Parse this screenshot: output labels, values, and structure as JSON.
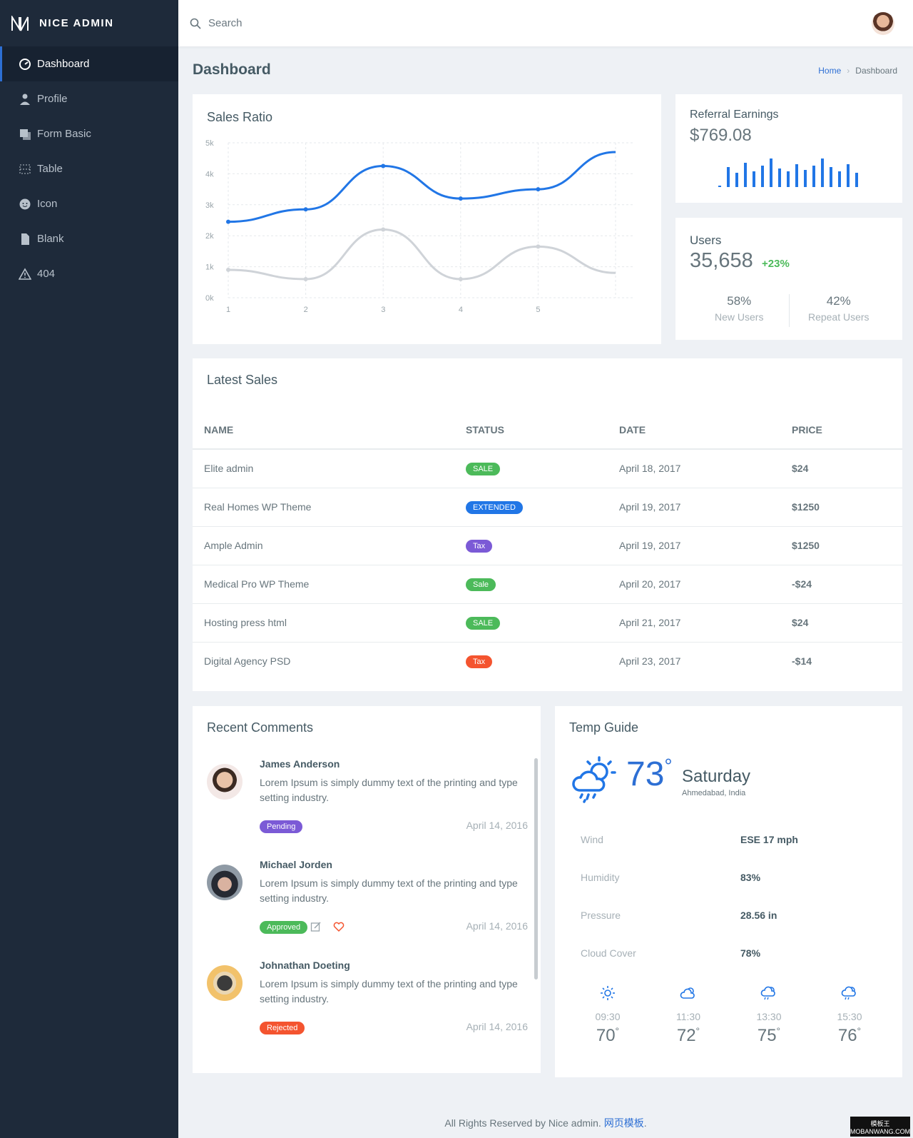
{
  "brand": {
    "name": "NICE ADMIN"
  },
  "sidebar": {
    "items": [
      {
        "label": "Dashboard",
        "icon": "dashboard-icon",
        "active": true
      },
      {
        "label": "Profile",
        "icon": "user-icon"
      },
      {
        "label": "Form Basic",
        "icon": "form-icon"
      },
      {
        "label": "Table",
        "icon": "table-icon"
      },
      {
        "label": "Icon",
        "icon": "smiley-icon"
      },
      {
        "label": "Blank",
        "icon": "file-icon"
      },
      {
        "label": "404",
        "icon": "alert-icon"
      }
    ]
  },
  "topbar": {
    "search_placeholder": "Search"
  },
  "page": {
    "title": "Dashboard",
    "breadcrumb": {
      "home": "Home",
      "current": "Dashboard"
    }
  },
  "sales_ratio": {
    "title": "Sales Ratio"
  },
  "chart_data": {
    "type": "line",
    "title": "Sales Ratio",
    "x": [
      1,
      2,
      3,
      4,
      5,
      6
    ],
    "x_tick_labels": [
      "1",
      "2",
      "3",
      "4",
      "5"
    ],
    "y_tick_labels": [
      "5k",
      "4k",
      "3k",
      "2k",
      "1k",
      "0k"
    ],
    "ylim": [
      0,
      5000
    ],
    "grid": true,
    "series": [
      {
        "values": [
          2450,
          2850,
          4250,
          3200,
          3500,
          4700
        ],
        "color": "#2176e6"
      },
      {
        "values": [
          900,
          600,
          2200,
          600,
          1650,
          800
        ],
        "color": "#cfd3d8"
      }
    ]
  },
  "referral": {
    "label": "Referral Earnings",
    "value": "$769.08",
    "bars": [
      0.05,
      0.7,
      0.5,
      0.85,
      0.55,
      0.75,
      1.0,
      0.65,
      0.55,
      0.8,
      0.6,
      0.75,
      1.0,
      0.7,
      0.55,
      0.8,
      0.5
    ],
    "bar_color": "#2176e6"
  },
  "users": {
    "label": "Users",
    "value": "35,658",
    "change": "+23%",
    "new_pct": "58%",
    "new_label": "New Users",
    "repeat_pct": "42%",
    "repeat_label": "Repeat Users"
  },
  "latest_sales": {
    "title": "Latest Sales",
    "columns": [
      "NAME",
      "STATUS",
      "DATE",
      "PRICE"
    ],
    "rows": [
      {
        "name": "Elite admin",
        "status": "SALE",
        "color": "#4cba5a",
        "date": "April 18, 2017",
        "price": "$24"
      },
      {
        "name": "Real Homes WP Theme",
        "status": "EXTENDED",
        "color": "#2176e6",
        "date": "April 19, 2017",
        "price": "$1250"
      },
      {
        "name": "Ample Admin",
        "status": "Tax",
        "color": "#7b5ad6",
        "date": "April 19, 2017",
        "price": "$1250"
      },
      {
        "name": "Medical Pro WP Theme",
        "status": "Sale",
        "color": "#4cba5a",
        "date": "April 20, 2017",
        "price": "-$24"
      },
      {
        "name": "Hosting press html",
        "status": "SALE",
        "color": "#4cba5a",
        "date": "April 21, 2017",
        "price": "$24"
      },
      {
        "name": "Digital Agency PSD",
        "status": "Tax",
        "color": "#f4542f",
        "date": "April 23, 2017",
        "price": "-$14"
      }
    ]
  },
  "comments": {
    "title": "Recent Comments",
    "items": [
      {
        "name": "James Anderson",
        "text": "Lorem Ipsum is simply dummy text of the printing and type setting industry.",
        "status": "Pending",
        "color": "#7b5ad6",
        "date": "April 14, 2016",
        "actions": false
      },
      {
        "name": "Michael Jorden",
        "text": "Lorem Ipsum is simply dummy text of the printing and type setting industry.",
        "status": "Approved",
        "color": "#4cba5a",
        "date": "April 14, 2016",
        "actions": true
      },
      {
        "name": "Johnathan Doeting",
        "text": "Lorem Ipsum is simply dummy text of the printing and type setting industry.",
        "status": "Rejected",
        "color": "#f4542f",
        "date": "April 14, 2016",
        "actions": false
      }
    ]
  },
  "temp": {
    "title": "Temp Guide",
    "current": "73",
    "day": "Saturday",
    "location": "Ahmedabad, India",
    "details": [
      {
        "label": "Wind",
        "value": "ESE 17 mph"
      },
      {
        "label": "Humidity",
        "value": "83%"
      },
      {
        "label": "Pressure",
        "value": "28.56 in"
      },
      {
        "label": "Cloud Cover",
        "value": "78%"
      }
    ],
    "forecast": [
      {
        "time": "09:30",
        "temp": "70",
        "icon": "sun-icon"
      },
      {
        "time": "11:30",
        "temp": "72",
        "icon": "cloud-sun-icon"
      },
      {
        "time": "13:30",
        "temp": "75",
        "icon": "rain-sun-icon"
      },
      {
        "time": "15:30",
        "temp": "76",
        "icon": "rain-sun-icon"
      }
    ]
  },
  "footer": {
    "text": "All Rights Reserved by Nice admin. ",
    "link": "网页模板",
    "end": "."
  },
  "watermark": {
    "line1": "模板王",
    "line2": "MOBANWANG.COM"
  }
}
